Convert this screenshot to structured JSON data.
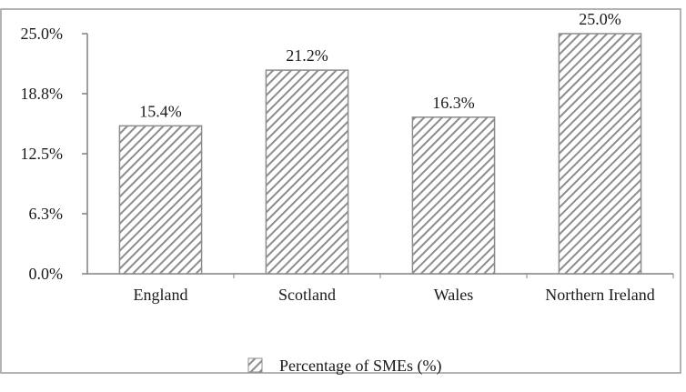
{
  "chart_data": {
    "type": "bar",
    "categories": [
      "England",
      "Scotland",
      "Wales",
      "Northern Ireland"
    ],
    "series": [
      {
        "name": "Percentage of SMEs (%)",
        "values": [
          15.4,
          21.2,
          16.3,
          25.0
        ],
        "data_labels": [
          "15.4%",
          "21.2%",
          "16.3%",
          "25.0%"
        ]
      }
    ],
    "yticks": [
      {
        "value": 0,
        "label": "0.0%"
      },
      {
        "value": 6.25,
        "label": "6.3%"
      },
      {
        "value": 12.5,
        "label": "12.5%"
      },
      {
        "value": 18.75,
        "label": "18.8%"
      },
      {
        "value": 25,
        "label": "25.0%"
      }
    ],
    "ylim": [
      0,
      25
    ],
    "grid": false,
    "legend_position": "bottom",
    "bar_fill": "diagonal-hatch",
    "colors": {
      "bar_stroke": "#8c8c8c",
      "hatch": "#8c8c8c",
      "axis": "#808080",
      "frame": "#9a9a9a"
    }
  }
}
